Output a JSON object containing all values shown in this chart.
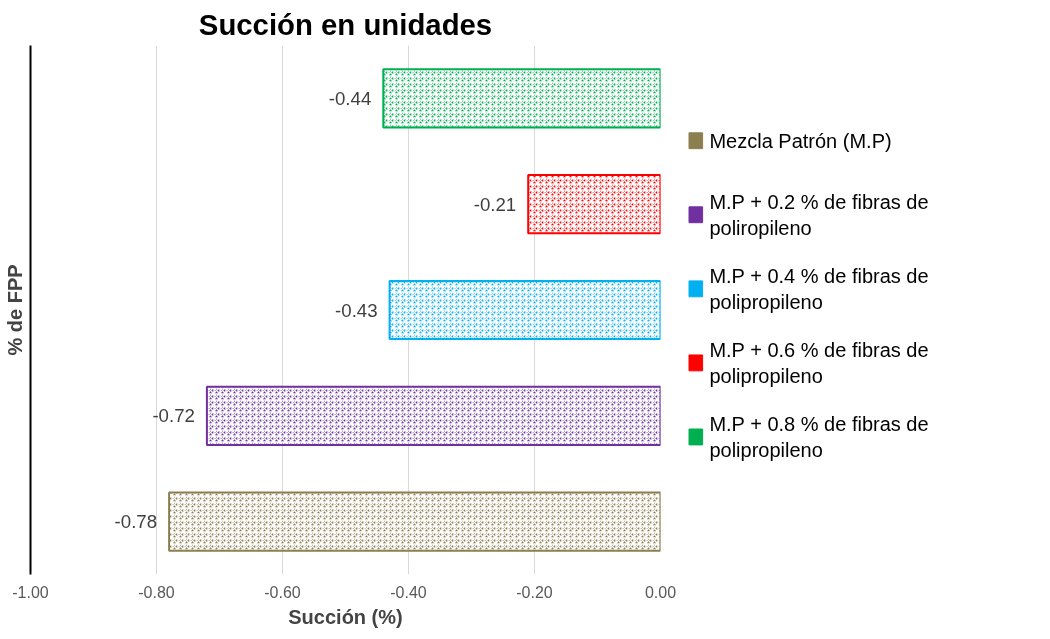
{
  "chart_data": {
    "type": "bar",
    "orientation": "horizontal",
    "title": "Succión en unidades",
    "xlabel": "Succión (%)",
    "ylabel": "% de FPP",
    "categories": [
      null,
      null,
      null,
      null,
      null
    ],
    "series": [
      {
        "name": "Mezcla Patrón (M.P)",
        "color": "#8c7f4f",
        "values": [
          null,
          null,
          null,
          null,
          -0.78
        ]
      },
      {
        "name": "M.P + 0.2 % de fibras de poliropileno",
        "color": "#7030a0",
        "values": [
          null,
          null,
          null,
          -0.72,
          null
        ]
      },
      {
        "name": "M.P + 0.4 % de fibras de polipropileno",
        "color": "#00b0f0",
        "values": [
          null,
          null,
          -0.43,
          null,
          null
        ]
      },
      {
        "name": "M.P + 0.6 % de fibras de polipropileno",
        "color": "#ff0000",
        "values": [
          null,
          -0.21,
          null,
          null,
          null
        ]
      },
      {
        "name": "M.P + 0.8 % de fibras de polipropileno",
        "color": "#00b050",
        "values": [
          -0.44,
          null,
          null,
          null,
          null
        ]
      }
    ],
    "xlim": [
      -1.0,
      0.0
    ],
    "xticks": [
      {
        "value": -1.0,
        "label": "-1.00"
      },
      {
        "value": -0.8,
        "label": "-0.80"
      },
      {
        "value": -0.6,
        "label": "-0.60"
      },
      {
        "value": -0.4,
        "label": "-0.40"
      },
      {
        "value": -0.2,
        "label": "-0.20"
      },
      {
        "value": 0.0,
        "label": "0.00"
      }
    ],
    "grid": "x",
    "legend": "right",
    "tick_labels": "x",
    "data_labels": true
  }
}
